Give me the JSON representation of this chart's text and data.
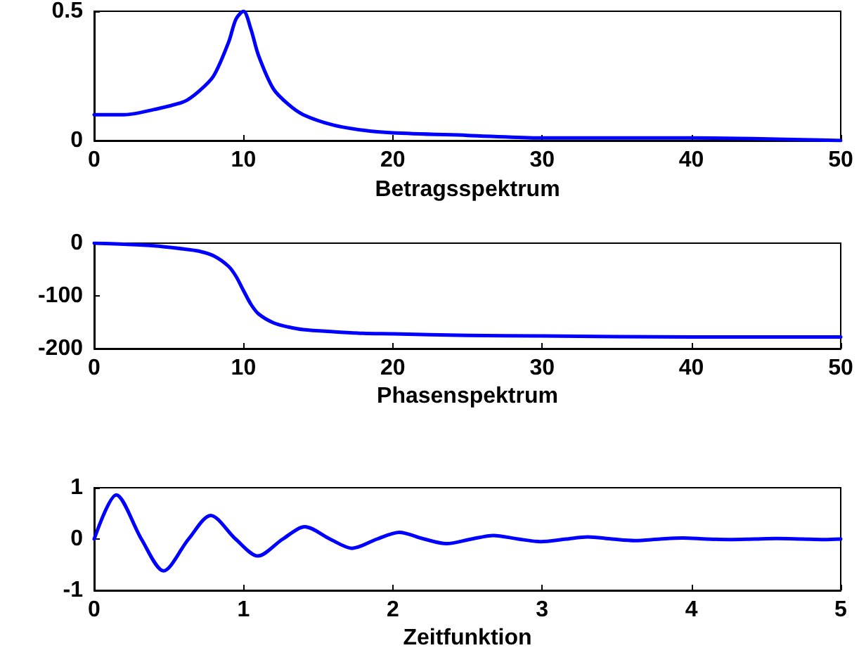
{
  "chart_data": [
    {
      "type": "line",
      "xlabel": "Betragsspektrum",
      "color": "#0000ff",
      "xlim": [
        0,
        50
      ],
      "xticks": [
        0,
        10,
        20,
        30,
        40,
        50
      ],
      "ylim": [
        0,
        0.5
      ],
      "yticks": [
        0,
        0.5
      ],
      "x": [
        0,
        2,
        4,
        6,
        7,
        8,
        9,
        9.5,
        10,
        10.5,
        11,
        12,
        13,
        14,
        16,
        18,
        20,
        25,
        30,
        40,
        50
      ],
      "values": [
        0.1,
        0.1,
        0.12,
        0.15,
        0.19,
        0.25,
        0.38,
        0.47,
        0.5,
        0.43,
        0.33,
        0.2,
        0.14,
        0.1,
        0.06,
        0.04,
        0.03,
        0.02,
        0.01,
        0.01,
        0
      ]
    },
    {
      "type": "line",
      "xlabel": "Phasenspektrum",
      "color": "#0000ff",
      "xlim": [
        0,
        50
      ],
      "xticks": [
        0,
        10,
        20,
        30,
        40,
        50
      ],
      "ylim": [
        -200,
        0
      ],
      "yticks": [
        -200,
        -100,
        0
      ],
      "x": [
        0,
        2,
        4,
        6,
        7,
        8,
        9,
        9.5,
        10,
        10.5,
        11,
        12,
        13,
        14,
        16,
        18,
        20,
        25,
        30,
        40,
        50
      ],
      "values": [
        0,
        -2,
        -5,
        -11,
        -15,
        -24,
        -44,
        -63,
        -90,
        -116,
        -134,
        -151,
        -159,
        -164,
        -168,
        -171,
        -172,
        -175,
        -176,
        -178,
        -178
      ]
    },
    {
      "type": "line",
      "xlabel": "Zeitfunktion",
      "color": "#0000ff",
      "xlim": [
        0,
        5
      ],
      "xticks": [
        0,
        1,
        2,
        3,
        4,
        5
      ],
      "ylim": [
        -1,
        1
      ],
      "yticks": [
        -1,
        0,
        1
      ],
      "x": [
        0,
        0.148,
        0.316,
        0.464,
        0.632,
        0.78,
        0.947,
        1.096,
        1.263,
        1.411,
        1.579,
        1.727,
        1.895,
        2.043,
        2.21,
        2.359,
        2.526,
        2.674,
        2.84,
        2.99,
        3.16,
        3.306,
        3.47,
        3.62,
        3.79,
        3.94,
        4.1,
        4.25,
        4.42,
        4.57,
        4.74,
        4.89,
        5
      ],
      "values": [
        0,
        0.86,
        0,
        -0.62,
        0,
        0.46,
        0,
        -0.33,
        0,
        0.24,
        0,
        -0.18,
        0,
        0.13,
        0,
        -0.09,
        0,
        0.07,
        0,
        -0.05,
        0,
        0.04,
        0,
        -0.03,
        0,
        0.02,
        0,
        -0.01,
        0,
        0.01,
        0,
        -0.01,
        0
      ]
    }
  ]
}
